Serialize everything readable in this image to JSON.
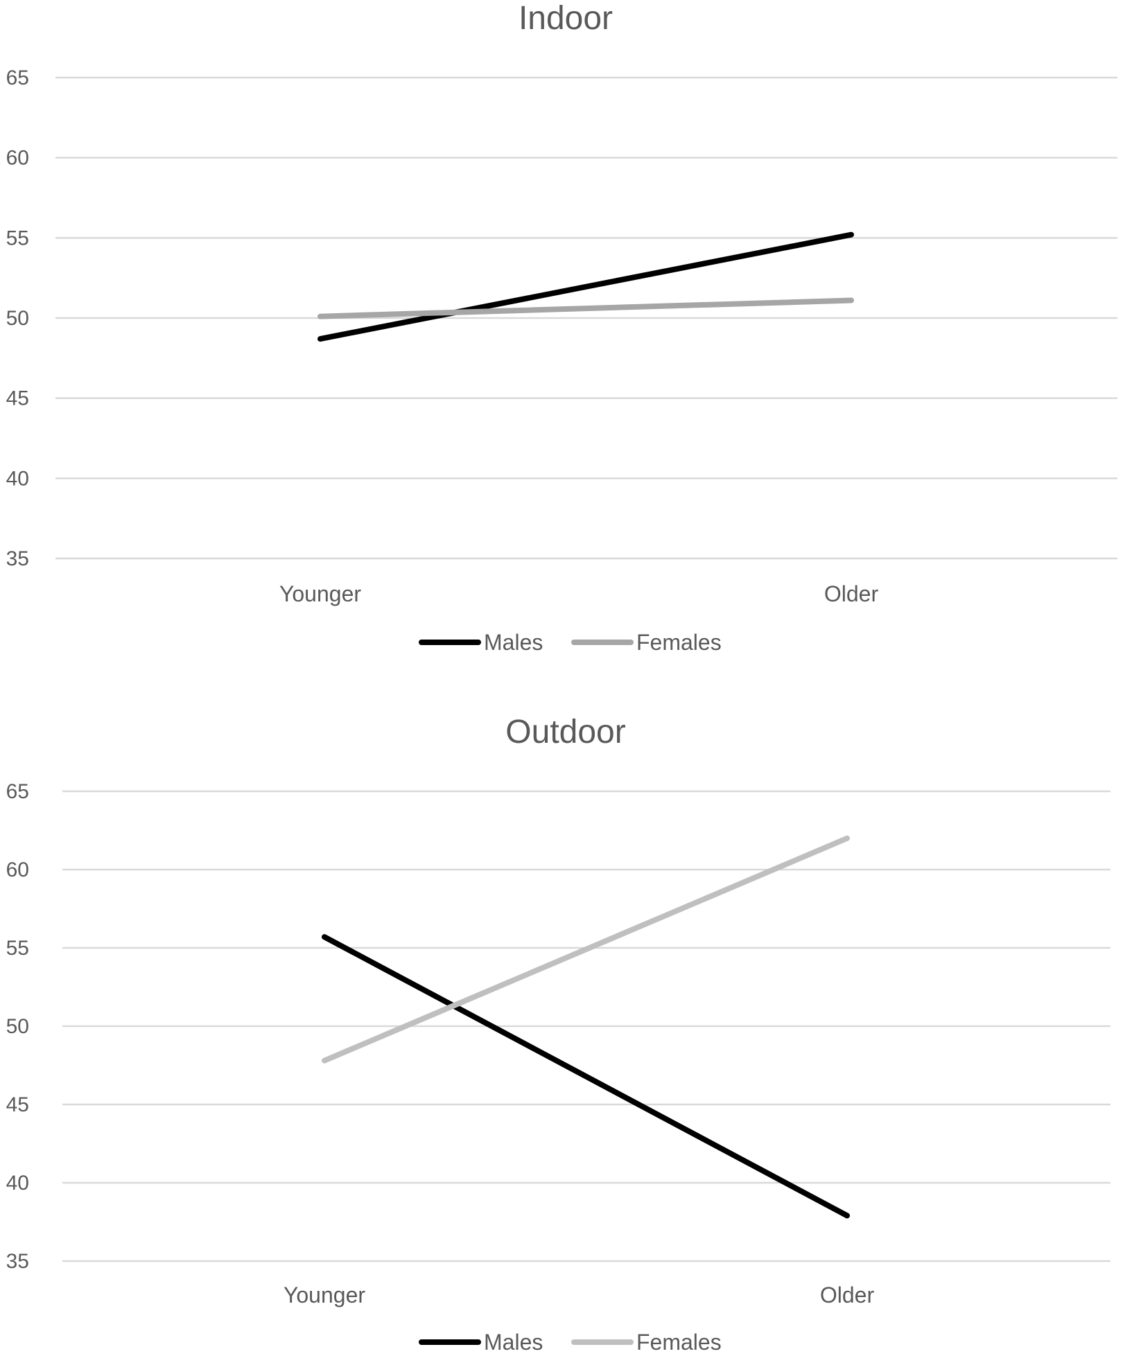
{
  "chart_data": [
    {
      "type": "line",
      "title": "Indoor",
      "xlabel": "",
      "ylabel": "",
      "categories": [
        "Younger",
        "Older"
      ],
      "ylim": [
        35,
        65
      ],
      "yticks": [
        35,
        40,
        45,
        50,
        55,
        60,
        65
      ],
      "grid": true,
      "legend": "bottom",
      "series": [
        {
          "name": "Males",
          "values": [
            48.7,
            55.2
          ],
          "color": "#000000"
        },
        {
          "name": "Females",
          "values": [
            50.1,
            51.1
          ],
          "color": "#a6a6a6"
        }
      ]
    },
    {
      "type": "line",
      "title": "Outdoor",
      "xlabel": "",
      "ylabel": "",
      "categories": [
        "Younger",
        "Older"
      ],
      "ylim": [
        35,
        65
      ],
      "yticks": [
        35,
        40,
        45,
        50,
        55,
        60,
        65
      ],
      "grid": true,
      "legend": "bottom",
      "series": [
        {
          "name": "Males",
          "values": [
            55.7,
            37.9
          ],
          "color": "#000000"
        },
        {
          "name": "Females",
          "values": [
            47.8,
            62.0
          ],
          "color": "#bfbfbf"
        }
      ]
    }
  ]
}
